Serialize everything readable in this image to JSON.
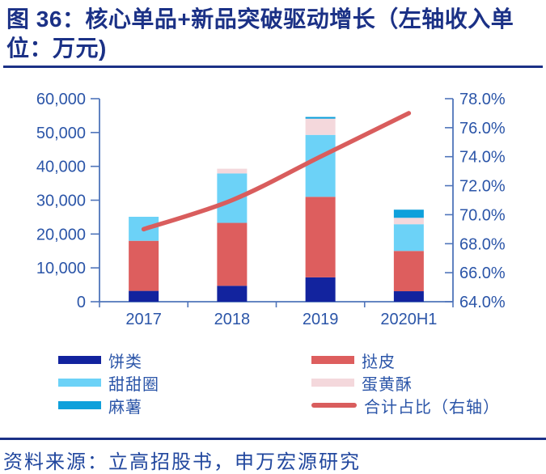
{
  "page": {
    "figure_title_line1": "图 36：核心单品+新品突破驱动增长（左轴收入单",
    "figure_title_line2": "位：万元)",
    "source": "资料来源：立高招股书，申万宏源研究"
  },
  "colors": {
    "title_navy": "#1B3186",
    "axis_text_blue": "#2B55A8",
    "axis_line_blue": "#4F74BA",
    "source_text_blue": "#21479E"
  },
  "chart_data": {
    "type": "bar",
    "subtype": "stacked-bars-with-right-axis-line",
    "title": "核心单品+新品突破驱动增长（左轴收入单位：万元)",
    "categories": [
      "2017",
      "2018",
      "2019",
      "2020H1"
    ],
    "series": [
      {
        "name": "饼类",
        "type": "bar",
        "color": "#12239E",
        "values": [
          3200,
          4700,
          7200,
          3100
        ]
      },
      {
        "name": "挞皮",
        "type": "bar",
        "color": "#DD5E5E",
        "values": [
          14800,
          18600,
          23800,
          11900
        ]
      },
      {
        "name": "甜甜圈",
        "type": "bar",
        "color": "#6CD2F7",
        "values": [
          7100,
          14600,
          18300,
          7900
        ]
      },
      {
        "name": "蛋黄酥",
        "type": "bar",
        "color": "#F4D8DC",
        "values": [
          0,
          1400,
          4800,
          1900
        ]
      },
      {
        "name": "麻薯",
        "type": "bar",
        "color": "#0FA0DB",
        "values": [
          0,
          0,
          500,
          2400
        ]
      },
      {
        "name": "合计占比（右轴）",
        "type": "line",
        "axis": "right",
        "color": "#D95D5D",
        "values": [
          69.0,
          71.0,
          74.0,
          77.0
        ]
      }
    ],
    "left_axis": {
      "min": 0,
      "max": 60000,
      "step": 10000,
      "tick_labels": [
        "60,000",
        "50,000",
        "40,000",
        "30,000",
        "20,000",
        "10,000",
        "0"
      ]
    },
    "right_axis": {
      "min": 64,
      "max": 78,
      "step": 2,
      "tick_labels": [
        "78.0%",
        "76.0%",
        "74.0%",
        "72.0%",
        "70.0%",
        "68.0%",
        "66.0%",
        "64.0%"
      ]
    },
    "grid": false,
    "legend_position": "bottom"
  },
  "legend": {
    "items": [
      {
        "label": "饼类",
        "swatch": "bar",
        "color": "#12239E"
      },
      {
        "label": "挞皮",
        "swatch": "bar",
        "color": "#DD5E5E"
      },
      {
        "label": "甜甜圈",
        "swatch": "bar",
        "color": "#6CD2F7"
      },
      {
        "label": "蛋黄酥",
        "swatch": "bar",
        "color": "#F4D8DC"
      },
      {
        "label": "麻薯",
        "swatch": "bar",
        "color": "#0FA0DB"
      },
      {
        "label": "合计占比（右轴）",
        "swatch": "line",
        "color": "#D95D5D"
      }
    ]
  }
}
